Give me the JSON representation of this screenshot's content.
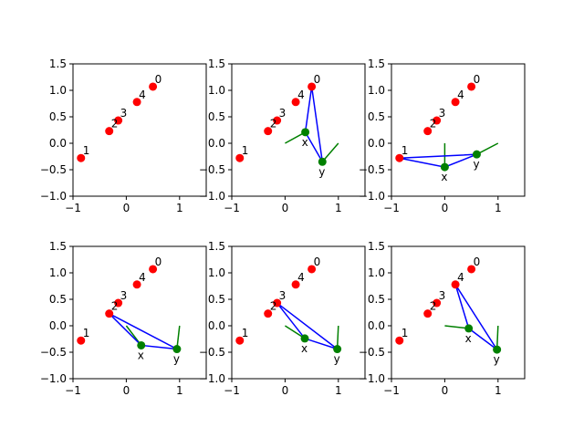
{
  "chart_data": [
    {
      "type": "scatter",
      "xlim": [
        -1,
        1.5
      ],
      "ylim": [
        -1,
        1.5
      ],
      "xticks": [
        "-1",
        "0",
        "1"
      ],
      "yticks": [
        "1.5",
        "1.0",
        "0.5",
        "0.0",
        "-0.5",
        "-1.0"
      ],
      "points": [
        {
          "label": "0",
          "x": 0.5,
          "y": 1.07
        },
        {
          "label": "1",
          "x": -0.85,
          "y": -0.28
        },
        {
          "label": "2",
          "x": -0.32,
          "y": 0.23
        },
        {
          "label": "3",
          "x": -0.15,
          "y": 0.43
        },
        {
          "label": "4",
          "x": 0.2,
          "y": 0.78
        }
      ],
      "arm": null
    },
    {
      "type": "scatter",
      "xlim": [
        -1,
        1.5
      ],
      "ylim": [
        -1,
        1.5
      ],
      "xticks": [
        "-1",
        "0",
        "1"
      ],
      "yticks": [
        "1.5",
        "1.0",
        "0.5",
        "0.0",
        "-0.5",
        "-1.0"
      ],
      "points": [
        {
          "label": "0",
          "x": 0.5,
          "y": 1.07
        },
        {
          "label": "1",
          "x": -0.85,
          "y": -0.28
        },
        {
          "label": "2",
          "x": -0.32,
          "y": 0.23
        },
        {
          "label": "3",
          "x": -0.15,
          "y": 0.43
        },
        {
          "label": "4",
          "x": 0.2,
          "y": 0.78
        }
      ],
      "arm": {
        "target": [
          0.5,
          1.07
        ],
        "x": {
          "label": "x",
          "x": 0.38,
          "y": 0.21
        },
        "y": {
          "label": "y",
          "x": 0.7,
          "y": -0.35
        },
        "ref_lines": [
          [
            [
              0,
              0
            ],
            [
              0.38,
              0.21
            ]
          ],
          [
            [
              1,
              0
            ],
            [
              0.7,
              -0.35
            ]
          ]
        ]
      }
    },
    {
      "type": "scatter",
      "xlim": [
        -1,
        1.5
      ],
      "ylim": [
        -1,
        1.5
      ],
      "xticks": [
        "-1",
        "0",
        "1"
      ],
      "yticks": [
        "1.5",
        "1.0",
        "0.5",
        "0.0",
        "-0.5",
        "-1.0"
      ],
      "points": [
        {
          "label": "0",
          "x": 0.5,
          "y": 1.07
        },
        {
          "label": "1",
          "x": -0.85,
          "y": -0.28
        },
        {
          "label": "2",
          "x": -0.32,
          "y": 0.23
        },
        {
          "label": "3",
          "x": -0.15,
          "y": 0.43
        },
        {
          "label": "4",
          "x": 0.2,
          "y": 0.78
        }
      ],
      "arm": {
        "target": [
          -0.85,
          -0.28
        ],
        "x": {
          "label": "x",
          "x": 0.0,
          "y": -0.45
        },
        "y": {
          "label": "y",
          "x": 0.6,
          "y": -0.21
        },
        "ref_lines": [
          [
            [
              0,
              0
            ],
            [
              0.0,
              -0.45
            ]
          ],
          [
            [
              1,
              0
            ],
            [
              0.6,
              -0.21
            ]
          ]
        ]
      }
    },
    {
      "type": "scatter",
      "xlim": [
        -1,
        1.5
      ],
      "ylim": [
        -1,
        1.5
      ],
      "xticks": [
        "-1",
        "0",
        "1"
      ],
      "yticks": [
        "1.5",
        "1.0",
        "0.5",
        "0.0",
        "-0.5",
        "-1.0"
      ],
      "points": [
        {
          "label": "0",
          "x": 0.5,
          "y": 1.07
        },
        {
          "label": "1",
          "x": -0.85,
          "y": -0.28
        },
        {
          "label": "2",
          "x": -0.32,
          "y": 0.23
        },
        {
          "label": "3",
          "x": -0.15,
          "y": 0.43
        },
        {
          "label": "4",
          "x": 0.2,
          "y": 0.78
        }
      ],
      "arm": {
        "target": [
          -0.32,
          0.23
        ],
        "x": {
          "label": "x",
          "x": 0.28,
          "y": -0.37
        },
        "y": {
          "label": "y",
          "x": 0.95,
          "y": -0.44
        },
        "ref_lines": [
          [
            [
              0,
              0
            ],
            [
              0.28,
              -0.37
            ]
          ],
          [
            [
              1,
              0
            ],
            [
              0.95,
              -0.44
            ]
          ]
        ]
      }
    },
    {
      "type": "scatter",
      "xlim": [
        -1,
        1.5
      ],
      "ylim": [
        -1,
        1.5
      ],
      "xticks": [
        "-1",
        "0",
        "1"
      ],
      "yticks": [
        "1.5",
        "1.0",
        "0.5",
        "0.0",
        "-0.5",
        "-1.0"
      ],
      "points": [
        {
          "label": "0",
          "x": 0.5,
          "y": 1.07
        },
        {
          "label": "1",
          "x": -0.85,
          "y": -0.28
        },
        {
          "label": "2",
          "x": -0.32,
          "y": 0.23
        },
        {
          "label": "3",
          "x": -0.15,
          "y": 0.43
        },
        {
          "label": "4",
          "x": 0.2,
          "y": 0.78
        }
      ],
      "arm": {
        "target": [
          -0.15,
          0.43
        ],
        "x": {
          "label": "x",
          "x": 0.37,
          "y": -0.24
        },
        "y": {
          "label": "y",
          "x": 0.98,
          "y": -0.44
        },
        "ref_lines": [
          [
            [
              0,
              0
            ],
            [
              0.37,
              -0.24
            ]
          ],
          [
            [
              1,
              0
            ],
            [
              0.98,
              -0.44
            ]
          ]
        ]
      }
    },
    {
      "type": "scatter",
      "xlim": [
        -1,
        1.5
      ],
      "ylim": [
        -1,
        1.5
      ],
      "xticks": [
        "-1",
        "0",
        "1"
      ],
      "yticks": [
        "1.5",
        "1.0",
        "0.5",
        "0.0",
        "-0.5",
        "-1.0"
      ],
      "points": [
        {
          "label": "0",
          "x": 0.5,
          "y": 1.07
        },
        {
          "label": "1",
          "x": -0.85,
          "y": -0.28
        },
        {
          "label": "2",
          "x": -0.32,
          "y": 0.23
        },
        {
          "label": "3",
          "x": -0.15,
          "y": 0.43
        },
        {
          "label": "4",
          "x": 0.2,
          "y": 0.78
        }
      ],
      "arm": {
        "target": [
          0.2,
          0.78
        ],
        "x": {
          "label": "x",
          "x": 0.45,
          "y": -0.05
        },
        "y": {
          "label": "y",
          "x": 0.98,
          "y": -0.45
        },
        "ref_lines": [
          [
            [
              0,
              0
            ],
            [
              0.45,
              -0.05
            ]
          ],
          [
            [
              1,
              0
            ],
            [
              0.98,
              -0.45
            ]
          ]
        ]
      }
    }
  ],
  "colors": {
    "point": "#ff0000",
    "joint": "#008000",
    "link": "#0000ff",
    "ref": "#008000",
    "axis": "#000000"
  }
}
